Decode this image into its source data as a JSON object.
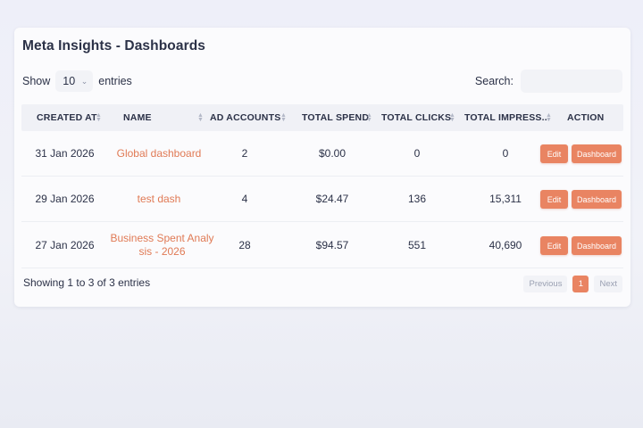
{
  "page": {
    "title": "Meta Insights - Dashboards"
  },
  "length_menu": {
    "show_label": "Show",
    "value": "10",
    "entries_label": "entries"
  },
  "search": {
    "label": "Search:",
    "value": "",
    "placeholder": ""
  },
  "table": {
    "columns": [
      "CREATED AT",
      "NAME",
      "AD ACCOUNTS",
      "TOTAL SPEND",
      "TOTAL CLICKS",
      "TOTAL IMPRESS...",
      "ACTION"
    ],
    "rows": [
      {
        "created_at": "31 Jan 2026",
        "name": "Global dashboard",
        "ad_accounts": "2",
        "total_spend": "$0.00",
        "total_clicks": "0",
        "total_impressions": "0",
        "edit_label": "Edit",
        "dashboard_label": "Dashboard"
      },
      {
        "created_at": "29 Jan 2026",
        "name": "test dash",
        "ad_accounts": "4",
        "total_spend": "$24.47",
        "total_clicks": "136",
        "total_impressions": "15,311",
        "edit_label": "Edit",
        "dashboard_label": "Dashboard"
      },
      {
        "created_at": "27 Jan 2026",
        "name": "Business Spent Analy sis - 2026",
        "ad_accounts": "28",
        "total_spend": "$94.57",
        "total_clicks": "551",
        "total_impressions": "40,690",
        "edit_label": "Edit",
        "dashboard_label": "Dashboard"
      }
    ]
  },
  "footer": {
    "info": "Showing 1 to 3 of 3 entries",
    "previous_label": "Previous",
    "current_page": "1",
    "next_label": "Next"
  },
  "colors": {
    "accent": "#e98462",
    "link": "#e07a55",
    "text": "#2b3147",
    "header_bg": "#f0f1f6"
  },
  "icons": {
    "sort": "sort-icon",
    "dropdown": "chevron-down-icon"
  }
}
